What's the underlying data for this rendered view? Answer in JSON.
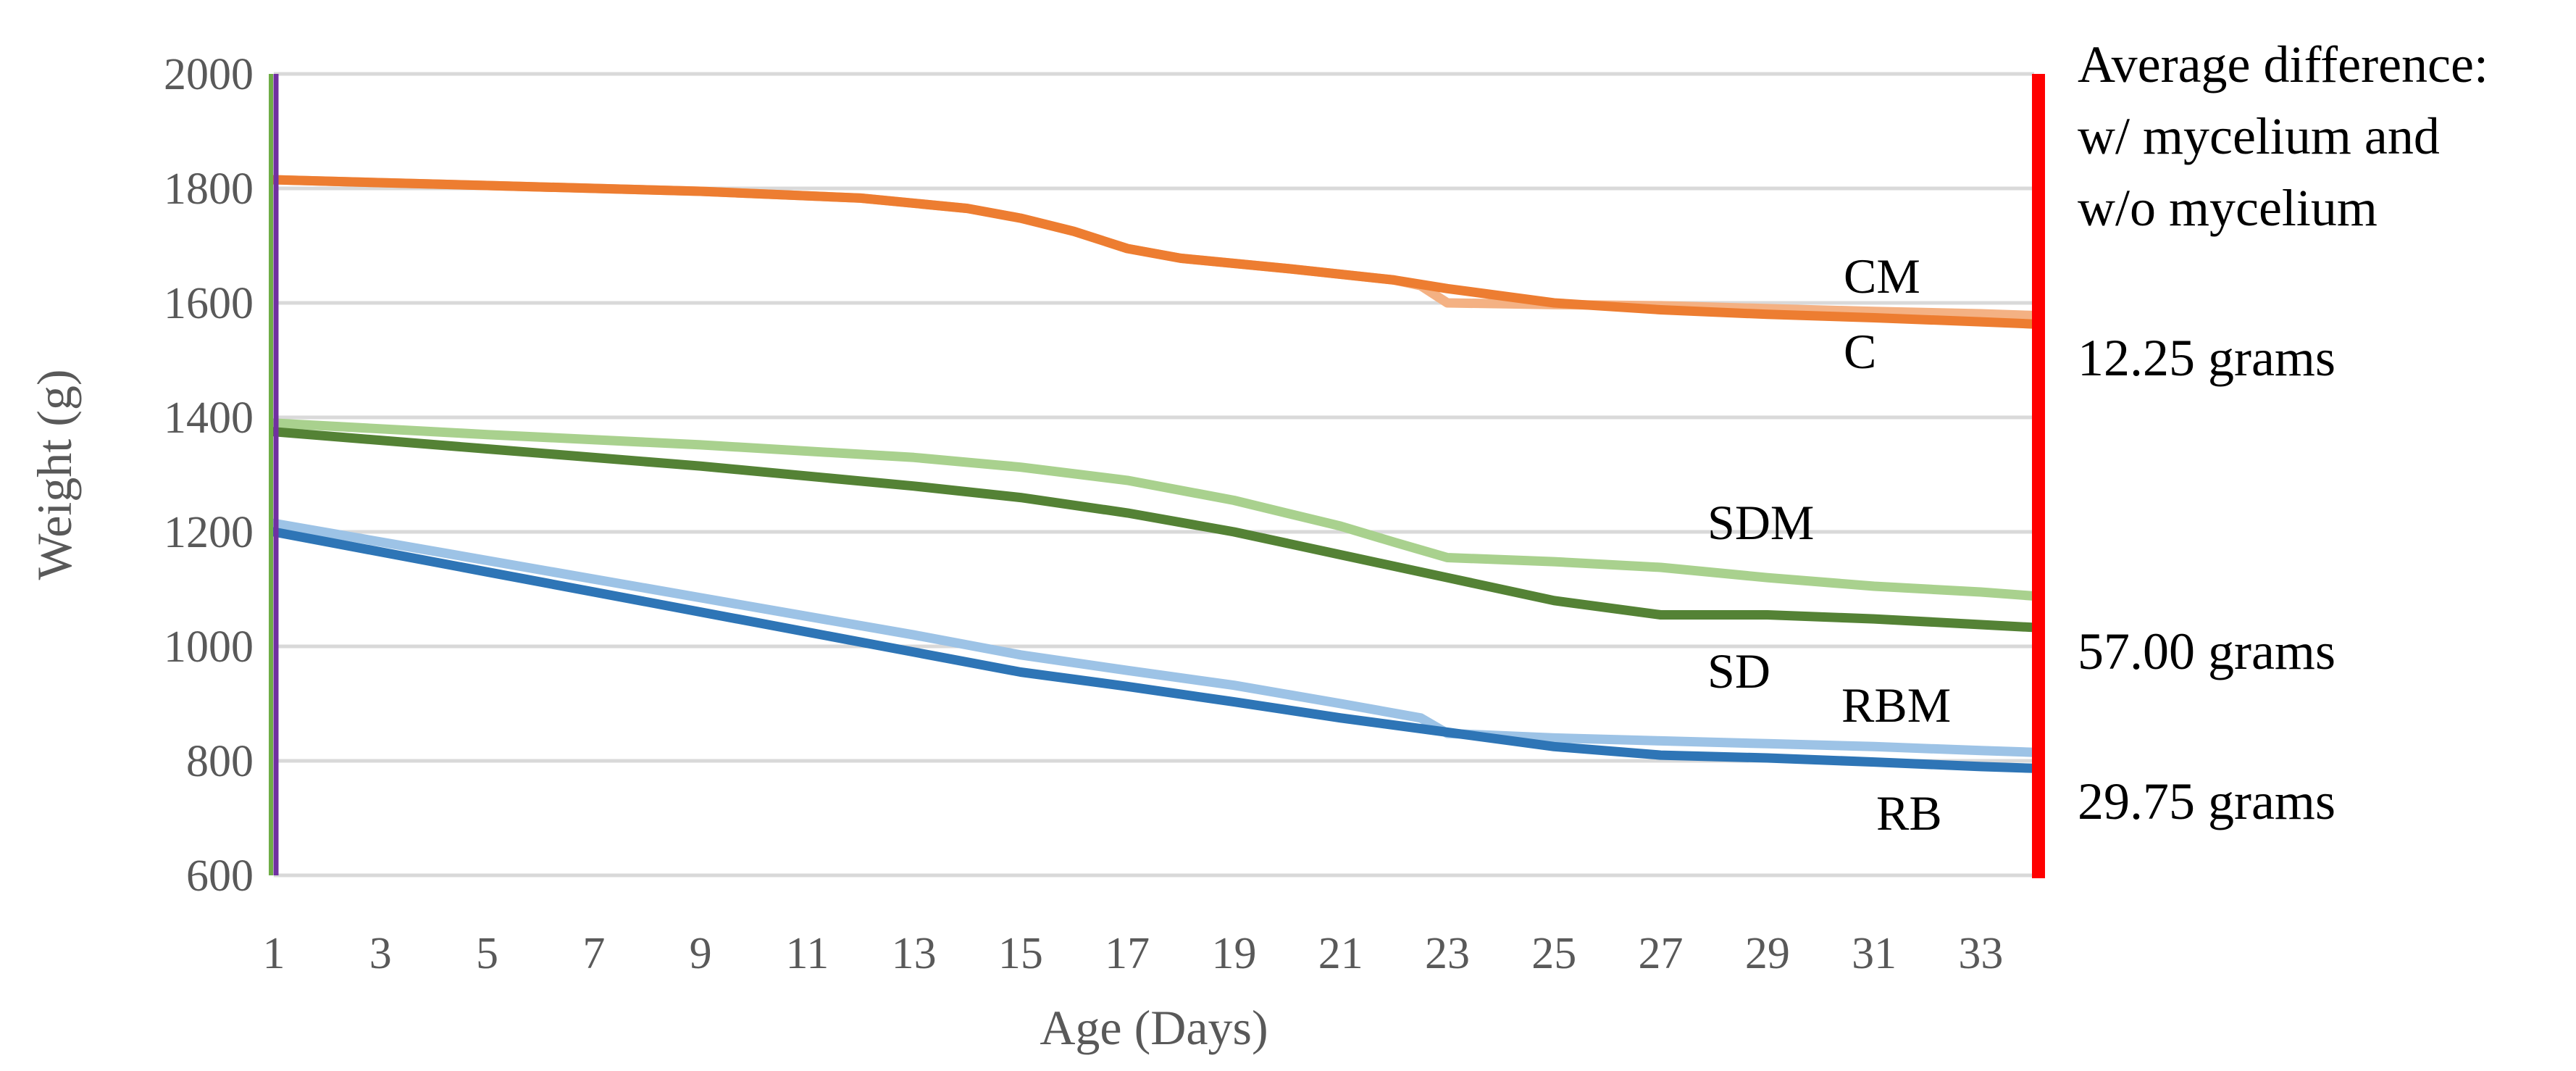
{
  "chart_data": {
    "type": "line",
    "xlabel": "Age (Days)",
    "ylabel": "Weight (g)",
    "xlim": [
      1,
      34
    ],
    "ylim": [
      600,
      2000
    ],
    "x_ticks": [
      "1",
      "3",
      "5",
      "7",
      "9",
      "11",
      "13",
      "15",
      "17",
      "19",
      "21",
      "23",
      "25",
      "27",
      "29",
      "31",
      "33"
    ],
    "y_ticks": [
      "600",
      "800",
      "1000",
      "1200",
      "1400",
      "1600",
      "1800",
      "2000"
    ],
    "grid": true,
    "legend": "none",
    "series": [
      {
        "name": "CM",
        "color": "#f4b183",
        "points": [
          [
            1,
            1815
          ],
          [
            5,
            1805
          ],
          [
            9,
            1795
          ],
          [
            12,
            1783
          ],
          [
            14,
            1765
          ],
          [
            15,
            1748
          ],
          [
            16,
            1725
          ],
          [
            17,
            1695
          ],
          [
            18,
            1678
          ],
          [
            20,
            1660
          ],
          [
            22,
            1640
          ],
          [
            22.5,
            1630
          ],
          [
            23,
            1600
          ],
          [
            25,
            1597
          ],
          [
            27,
            1595
          ],
          [
            29,
            1590
          ],
          [
            31,
            1585
          ],
          [
            33,
            1581
          ],
          [
            34,
            1578
          ]
        ]
      },
      {
        "name": "C",
        "color": "#ed7d31",
        "points": [
          [
            1,
            1815
          ],
          [
            5,
            1805
          ],
          [
            9,
            1795
          ],
          [
            12,
            1783
          ],
          [
            14,
            1765
          ],
          [
            15,
            1748
          ],
          [
            16,
            1725
          ],
          [
            17,
            1695
          ],
          [
            18,
            1678
          ],
          [
            20,
            1660
          ],
          [
            22,
            1640
          ],
          [
            23,
            1625
          ],
          [
            25,
            1600
          ],
          [
            27,
            1588
          ],
          [
            29,
            1580
          ],
          [
            31,
            1574
          ],
          [
            33,
            1567
          ],
          [
            34,
            1563
          ]
        ]
      },
      {
        "name": "SDM",
        "color": "#a9d18e",
        "points": [
          [
            1,
            1390
          ],
          [
            5,
            1370
          ],
          [
            9,
            1352
          ],
          [
            13,
            1330
          ],
          [
            15,
            1313
          ],
          [
            17,
            1290
          ],
          [
            19,
            1255
          ],
          [
            21,
            1210
          ],
          [
            22,
            1182
          ],
          [
            23,
            1155
          ],
          [
            25,
            1148
          ],
          [
            27,
            1138
          ],
          [
            29,
            1120
          ],
          [
            31,
            1105
          ],
          [
            33,
            1095
          ],
          [
            34,
            1088
          ]
        ]
      },
      {
        "name": "SD",
        "color": "#548235",
        "points": [
          [
            1,
            1375
          ],
          [
            5,
            1345
          ],
          [
            9,
            1315
          ],
          [
            13,
            1280
          ],
          [
            15,
            1260
          ],
          [
            17,
            1233
          ],
          [
            19,
            1200
          ],
          [
            21,
            1160
          ],
          [
            23,
            1120
          ],
          [
            25,
            1080
          ],
          [
            27,
            1055
          ],
          [
            29,
            1055
          ],
          [
            31,
            1048
          ],
          [
            33,
            1038
          ],
          [
            34,
            1033
          ]
        ]
      },
      {
        "name": "RBM",
        "color": "#9dc3e6",
        "points": [
          [
            1,
            1215
          ],
          [
            5,
            1150
          ],
          [
            9,
            1085
          ],
          [
            13,
            1020
          ],
          [
            15,
            985
          ],
          [
            17,
            958
          ],
          [
            19,
            932
          ],
          [
            21,
            900
          ],
          [
            22.5,
            875
          ],
          [
            23,
            848
          ],
          [
            25,
            840
          ],
          [
            27,
            835
          ],
          [
            29,
            830
          ],
          [
            31,
            825
          ],
          [
            33,
            818
          ],
          [
            34,
            815
          ]
        ]
      },
      {
        "name": "RB",
        "color": "#2e75b6",
        "points": [
          [
            1,
            1200
          ],
          [
            5,
            1130
          ],
          [
            9,
            1060
          ],
          [
            13,
            990
          ],
          [
            15,
            955
          ],
          [
            17,
            930
          ],
          [
            19,
            903
          ],
          [
            21,
            875
          ],
          [
            23,
            850
          ],
          [
            25,
            825
          ],
          [
            27,
            810
          ],
          [
            29,
            805
          ],
          [
            31,
            798
          ],
          [
            33,
            790
          ],
          [
            34,
            787
          ]
        ]
      }
    ],
    "labels": [
      "CM",
      "C",
      "SDM",
      "SD",
      "RBM",
      "RB"
    ],
    "annotations": {
      "title_lines": [
        "Average difference:",
        "w/ mycelium and",
        "w/o mycelium"
      ],
      "values": [
        "12.25 grams",
        "57.00 grams",
        "29.75 grams"
      ]
    }
  }
}
